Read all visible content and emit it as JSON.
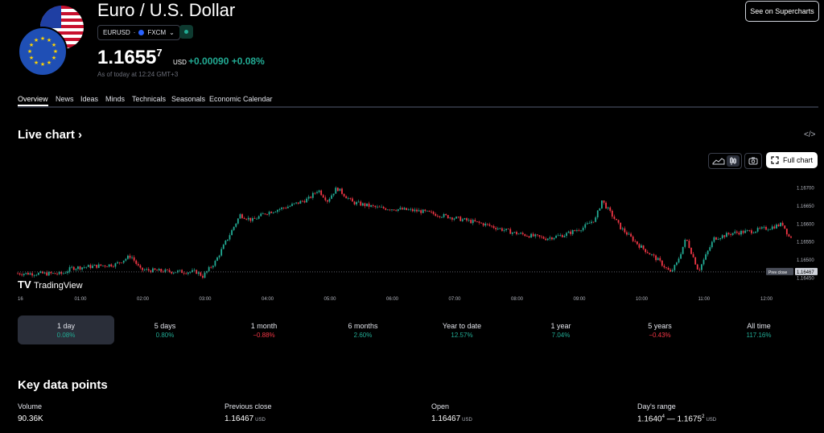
{
  "header": {
    "title": "Euro / U.S. Dollar",
    "symbol": "EURUSD",
    "exchange": "FXCM",
    "price_main": "1.1655",
    "price_sup": "7",
    "currency": "USD",
    "change": "+0.00090 +0.08%",
    "as_of": "As of today at 12:24 GMT+3",
    "supercharts_label": "See on Supercharts"
  },
  "tabs": [
    "Overview",
    "News",
    "Ideas",
    "Minds",
    "Technicals",
    "Seasonals",
    "Economic Calendar"
  ],
  "live_chart": {
    "heading": "Live chart",
    "full_chart_label": "Full chart",
    "watermark": "TradingView",
    "prev_close_label": "Prev close",
    "prev_close_value": "1.16467",
    "colors": {
      "up": "#22ab94",
      "down": "#f23645",
      "background": "#000000"
    }
  },
  "chart_data": {
    "type": "candlestick",
    "x_labels": [
      "16",
      "01:00",
      "02:00",
      "03:00",
      "04:00",
      "05:00",
      "06:00",
      "07:00",
      "08:00",
      "09:00",
      "10:00",
      "11:00",
      "12:00"
    ],
    "y_ticks": [
      "1.16700",
      "1.16650",
      "1.16600",
      "1.16550",
      "1.16500",
      "1.16450"
    ],
    "ylim": [
      1.1644,
      1.1673
    ],
    "prev_close": 1.16467,
    "series": [
      {
        "t": 0.0,
        "v": 1.16463
      },
      {
        "t": 0.75,
        "v": 1.16462
      },
      {
        "t": 0.9,
        "v": 1.16478
      },
      {
        "t": 1.2,
        "v": 1.16482
      },
      {
        "t": 1.6,
        "v": 1.16488
      },
      {
        "t": 1.85,
        "v": 1.16512
      },
      {
        "t": 2.0,
        "v": 1.16473
      },
      {
        "t": 2.5,
        "v": 1.16468
      },
      {
        "t": 2.9,
        "v": 1.16467
      },
      {
        "t": 3.0,
        "v": 1.16455
      },
      {
        "t": 3.2,
        "v": 1.16495
      },
      {
        "t": 3.4,
        "v": 1.1656
      },
      {
        "t": 3.6,
        "v": 1.16625
      },
      {
        "t": 3.8,
        "v": 1.1661
      },
      {
        "t": 4.0,
        "v": 1.1663
      },
      {
        "t": 4.4,
        "v": 1.1665
      },
      {
        "t": 4.7,
        "v": 1.1667
      },
      {
        "t": 4.85,
        "v": 1.16695
      },
      {
        "t": 5.0,
        "v": 1.16665
      },
      {
        "t": 5.15,
        "v": 1.167
      },
      {
        "t": 5.4,
        "v": 1.1666
      },
      {
        "t": 5.8,
        "v": 1.16645
      },
      {
        "t": 6.2,
        "v": 1.1664
      },
      {
        "t": 6.5,
        "v": 1.16635
      },
      {
        "t": 7.0,
        "v": 1.16618
      },
      {
        "t": 7.5,
        "v": 1.166
      },
      {
        "t": 8.0,
        "v": 1.16575
      },
      {
        "t": 8.5,
        "v": 1.1656
      },
      {
        "t": 8.8,
        "v": 1.1657
      },
      {
        "t": 9.1,
        "v": 1.1659
      },
      {
        "t": 9.3,
        "v": 1.16615
      },
      {
        "t": 9.4,
        "v": 1.16665
      },
      {
        "t": 9.5,
        "v": 1.1664
      },
      {
        "t": 9.7,
        "v": 1.1659
      },
      {
        "t": 10.0,
        "v": 1.1654
      },
      {
        "t": 10.3,
        "v": 1.165
      },
      {
        "t": 10.5,
        "v": 1.16465
      },
      {
        "t": 10.6,
        "v": 1.1649
      },
      {
        "t": 10.75,
        "v": 1.1656
      },
      {
        "t": 10.95,
        "v": 1.1647
      },
      {
        "t": 11.2,
        "v": 1.1656
      },
      {
        "t": 11.5,
        "v": 1.16575
      },
      {
        "t": 11.8,
        "v": 1.1658
      },
      {
        "t": 12.1,
        "v": 1.1659
      },
      {
        "t": 12.3,
        "v": 1.166
      },
      {
        "t": 12.4,
        "v": 1.16565
      }
    ]
  },
  "periods": [
    {
      "label": "1 day",
      "value": "0.08%",
      "sign": "pos",
      "active": true
    },
    {
      "label": "5 days",
      "value": "0.80%",
      "sign": "pos"
    },
    {
      "label": "1 month",
      "value": "−0.88%",
      "sign": "neg"
    },
    {
      "label": "6 months",
      "value": "2.60%",
      "sign": "pos"
    },
    {
      "label": "Year to date",
      "value": "12.57%",
      "sign": "pos"
    },
    {
      "label": "1 year",
      "value": "7.04%",
      "sign": "pos"
    },
    {
      "label": "5 years",
      "value": "−0.43%",
      "sign": "neg"
    },
    {
      "label": "All time",
      "value": "117.16%",
      "sign": "pos"
    }
  ],
  "key_data": {
    "title": "Key data points",
    "volume_label": "Volume",
    "volume_value": "90.36K",
    "prev_close_label": "Previous close",
    "prev_close_value": "1.16467",
    "prev_close_unit": "USD",
    "open_label": "Open",
    "open_value": "1.16467",
    "open_unit": "USD",
    "range_label": "Day's range",
    "range_low": "1.1640",
    "range_low_sup": "4",
    "range_sep": " — ",
    "range_high": "1.1675",
    "range_high_sup": "2",
    "range_unit": "USD"
  }
}
